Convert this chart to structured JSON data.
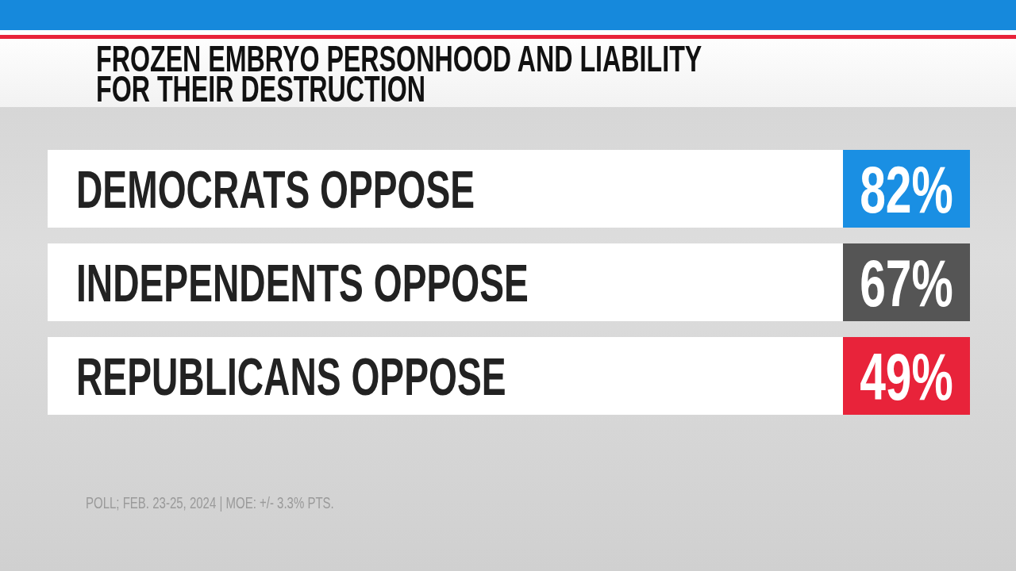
{
  "chart_data": {
    "type": "other",
    "title": "FROZEN EMBRYO PERSONHOOD AND LIABILITY FOR THEIR DESTRUCTION",
    "categories": [
      "DEMOCRATS OPPOSE",
      "INDEPENDENTS OPPOSE",
      "REPUBLICANS OPPOSE"
    ],
    "values": [
      82,
      67,
      49
    ],
    "value_labels": [
      "82%",
      "67%",
      "49%"
    ],
    "colors": [
      "#1a8fe3",
      "#555555",
      "#e8233a"
    ],
    "annotations": [
      "POLL; FEB. 23-25, 2024 | MOE: +/- 3.3% PTS."
    ]
  }
}
